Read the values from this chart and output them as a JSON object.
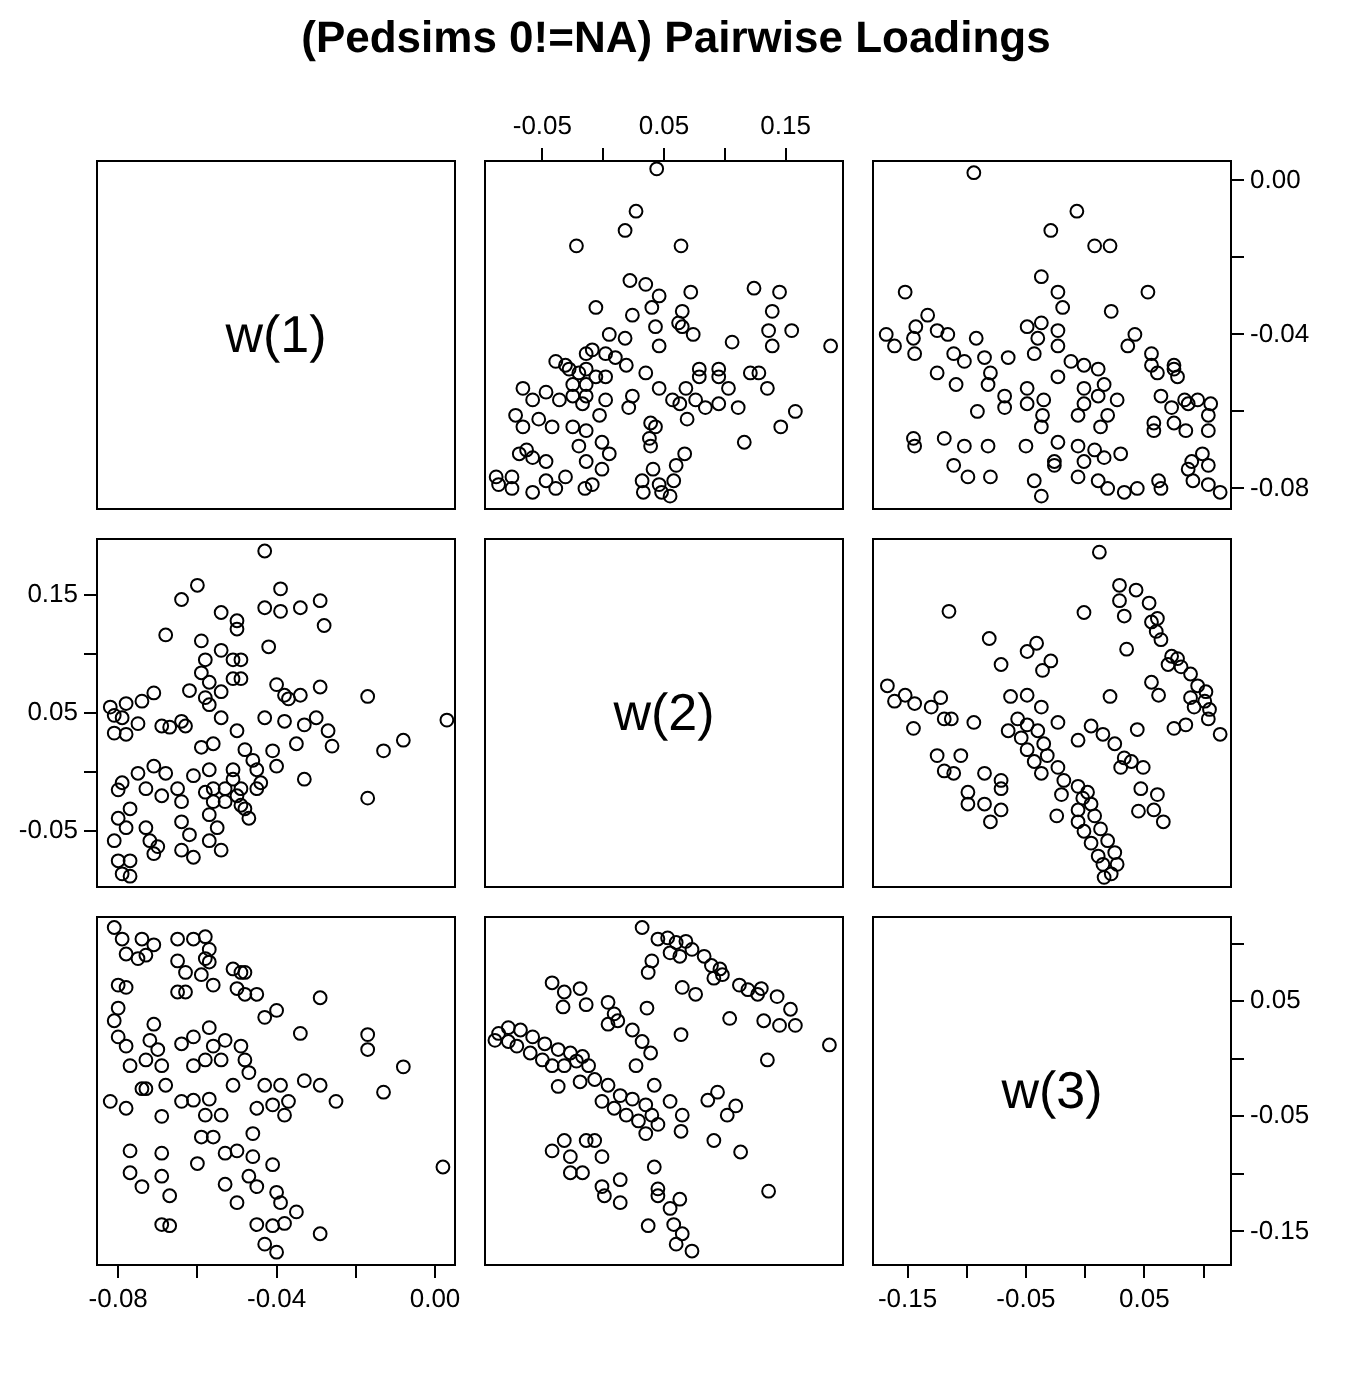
{
  "chart_data": [
    {
      "type": "other",
      "title": "(Pedsims 0!=NA) Pairwise Loadings",
      "annotations": [
        "w(1)"
      ]
    },
    {
      "type": "scatter",
      "color": "#000000",
      "marker": "circle",
      "xlim": [
        -0.098,
        0.198
      ],
      "ylim": [
        -0.0856,
        0.0053
      ],
      "xticks": [
        -0.05,
        {
          "value": 0,
          "label": null
        },
        0.05,
        {
          "value": 0.1,
          "label": null
        },
        0.15
      ],
      "tick_labels": "x",
      "x": [
        0.187,
        0.158,
        0.146,
        0.116,
        0.155,
        0.139,
        0.136,
        0.139,
        0.145,
        0.124,
        0.135,
        0.128,
        0.121,
        0.106,
        0.111,
        0.095,
        0.084,
        0.076,
        0.063,
        0.057,
        0.103,
        0.095,
        0.095,
        0.079,
        0.079,
        0.069,
        0.068,
        0.074,
        0.065,
        0.062,
        0.065,
        0.072,
        0.064,
        0.044,
        0.027,
        0.018,
        -0.022,
        -0.006,
        0.055,
        0.058,
        0.048,
        0.046,
        0.033,
        0.032,
        0.041,
        0.06,
        0.067,
        0.039,
        0.038,
        0.043,
        0.039,
        0.046,
        0.035,
        0.019,
        0.024,
        0.021,
        0.01,
        0.002,
        0.002,
        0.002,
        0.046,
        0.043,
        0.04,
        0.046,
        0.035,
        0.022,
        0.024,
        0.005,
        0.018,
        -0.001,
        0.005,
        -0.001,
        -0.014,
        -0.02,
        -0.014,
        -0.003,
        -0.025,
        -0.009,
        -0.015,
        -0.031,
        -0.039,
        -0.047,
        -0.058,
        -0.075,
        -0.086,
        -0.075,
        -0.088,
        -0.047,
        -0.058,
        -0.069,
        -0.063,
        -0.042,
        -0.053,
        -0.066,
        -0.072,
        -0.017,
        -0.025,
        -0.036,
        -0.047,
        -0.058,
        -0.066,
        -0.025,
        -0.014,
        -0.02,
        -0.028,
        -0.039,
        -0.031,
        -0.014,
        -0.014,
        -0.009,
        -0.014,
        -0.006
      ],
      "values": [
        -0.043,
        -0.06,
        -0.064,
        -0.068,
        -0.039,
        -0.043,
        -0.039,
        -0.034,
        -0.029,
        -0.028,
        -0.054,
        -0.05,
        -0.05,
        -0.042,
        -0.059,
        -0.058,
        -0.059,
        -0.057,
        -0.058,
        -0.057,
        -0.054,
        -0.051,
        -0.049,
        -0.051,
        -0.049,
        -0.062,
        -0.054,
        -0.04,
        -0.038,
        -0.037,
        -0.034,
        -0.029,
        -0.017,
        0.003,
        -0.008,
        -0.013,
        -0.017,
        -0.033,
        -0.082,
        -0.078,
        -0.081,
        -0.079,
        -0.081,
        -0.078,
        -0.075,
        -0.074,
        -0.071,
        -0.069,
        -0.067,
        -0.064,
        -0.063,
        -0.054,
        -0.05,
        -0.048,
        -0.056,
        -0.059,
        -0.046,
        -0.051,
        -0.057,
        -0.045,
        -0.043,
        -0.038,
        -0.033,
        -0.03,
        -0.027,
        -0.026,
        -0.035,
        -0.04,
        -0.041,
        -0.075,
        -0.071,
        -0.068,
        -0.073,
        -0.069,
        -0.065,
        -0.061,
        -0.064,
        -0.079,
        -0.08,
        -0.077,
        -0.08,
        -0.078,
        -0.081,
        -0.08,
        -0.079,
        -0.077,
        -0.077,
        -0.073,
        -0.072,
        -0.071,
        -0.07,
        -0.064,
        -0.062,
        -0.064,
        -0.061,
        -0.058,
        -0.056,
        -0.057,
        -0.055,
        -0.057,
        -0.054,
        -0.053,
        -0.056,
        -0.05,
        -0.049,
        -0.047,
        -0.048,
        -0.049,
        -0.045,
        -0.044,
        -0.053,
        -0.051
      ]
    },
    {
      "type": "scatter",
      "color": "#000000",
      "marker": "circle",
      "xlim": [
        -0.18,
        0.124
      ],
      "ylim": [
        -0.0856,
        0.0053
      ],
      "yticks": [
        {
          "value": 0,
          "label": "0.00"
        },
        {
          "value": -0.02,
          "label": null
        },
        -0.04,
        {
          "value": -0.06,
          "label": null
        },
        -0.08
      ],
      "tick_labels": "y",
      "x": [
        0.114,
        0.104,
        0.091,
        0.104,
        0.09,
        0.099,
        0.087,
        0.104,
        0.104,
        0.106,
        0.095,
        0.087,
        0.084,
        0.085,
        0.075,
        0.073,
        0.064,
        0.078,
        0.075,
        0.075,
        0.061,
        0.056,
        0.056,
        0.058,
        0.058,
        0.064,
        0.062,
        0.044,
        0.033,
        0.019,
        0.011,
        -0.006,
        0.03,
        0.016,
        0.008,
        -0.001,
        -0.006,
        0.053,
        0.036,
        0.042,
        0.022,
        0.021,
        0.008,
        -0.007,
        -0.029,
        -0.094,
        0.013,
        0.019,
        0.027,
        0.011,
        -0.001,
        -0.006,
        0.016,
        -0.001,
        0.011,
        -0.001,
        -0.012,
        -0.023,
        -0.037,
        -0.043,
        -0.026,
        -0.026,
        -0.023,
        -0.037,
        -0.036,
        -0.023,
        -0.023,
        -0.019,
        -0.023,
        -0.037,
        -0.037,
        -0.049,
        -0.043,
        -0.04,
        -0.035,
        -0.049,
        -0.068,
        -0.091,
        -0.068,
        -0.049,
        -0.05,
        -0.08,
        -0.099,
        -0.111,
        -0.082,
        -0.102,
        -0.119,
        -0.144,
        -0.145,
        -0.082,
        -0.08,
        -0.065,
        -0.085,
        -0.102,
        -0.111,
        -0.109,
        -0.125,
        -0.092,
        -0.116,
        -0.125,
        -0.144,
        -0.145,
        -0.143,
        -0.133,
        -0.161,
        -0.168,
        -0.152
      ],
      "values": [
        -0.081,
        -0.079,
        -0.078,
        -0.074,
        -0.073,
        -0.071,
        -0.075,
        -0.065,
        -0.061,
        -0.058,
        -0.057,
        -0.058,
        -0.057,
        -0.065,
        -0.063,
        -0.059,
        -0.056,
        -0.051,
        -0.049,
        -0.048,
        -0.05,
        -0.048,
        -0.045,
        -0.065,
        -0.063,
        -0.08,
        -0.078,
        -0.08,
        -0.081,
        -0.08,
        -0.078,
        -0.077,
        -0.071,
        -0.072,
        -0.07,
        -0.073,
        -0.069,
        -0.029,
        -0.043,
        -0.04,
        -0.034,
        -0.017,
        -0.017,
        -0.008,
        -0.013,
        0.002,
        -0.064,
        -0.061,
        -0.057,
        -0.056,
        -0.058,
        -0.061,
        -0.053,
        -0.054,
        -0.049,
        -0.048,
        -0.047,
        -0.051,
        -0.082,
        -0.078,
        -0.074,
        -0.073,
        -0.068,
        -0.064,
        -0.061,
        -0.043,
        -0.039,
        -0.033,
        -0.029,
        -0.025,
        -0.037,
        -0.038,
        -0.045,
        -0.041,
        -0.057,
        -0.058,
        -0.059,
        -0.06,
        -0.056,
        -0.054,
        -0.069,
        -0.077,
        -0.077,
        -0.074,
        -0.069,
        -0.069,
        -0.067,
        -0.069,
        -0.067,
        -0.053,
        -0.05,
        -0.046,
        -0.046,
        -0.047,
        -0.045,
        -0.053,
        -0.05,
        -0.041,
        -0.04,
        -0.039,
        -0.045,
        -0.041,
        -0.038,
        -0.035,
        -0.043,
        -0.04,
        -0.029
      ]
    },
    {
      "type": "scatter",
      "color": "#000000",
      "marker": "circle",
      "xlim": [
        -0.0856,
        0.0053
      ],
      "ylim": [
        -0.098,
        0.198
      ],
      "yticks": [
        -0.05,
        {
          "value": 0,
          "label": null
        },
        0.05,
        {
          "value": 0.1,
          "label": null
        },
        0.15
      ],
      "tick_labels": "y",
      "x": [
        -0.043,
        -0.06,
        -0.064,
        -0.068,
        -0.039,
        -0.043,
        -0.039,
        -0.034,
        -0.029,
        -0.028,
        -0.054,
        -0.05,
        -0.05,
        -0.042,
        -0.059,
        -0.058,
        -0.059,
        -0.057,
        -0.058,
        -0.057,
        -0.054,
        -0.051,
        -0.049,
        -0.051,
        -0.049,
        -0.062,
        -0.054,
        -0.04,
        -0.038,
        -0.037,
        -0.034,
        -0.029,
        -0.017,
        0.003,
        -0.008,
        -0.013,
        -0.017,
        -0.033,
        -0.082,
        -0.078,
        -0.081,
        -0.079,
        -0.081,
        -0.078,
        -0.075,
        -0.074,
        -0.071,
        -0.069,
        -0.067,
        -0.064,
        -0.063,
        -0.054,
        -0.05,
        -0.048,
        -0.056,
        -0.059,
        -0.046,
        -0.051,
        -0.057,
        -0.045,
        -0.043,
        -0.038,
        -0.033,
        -0.03,
        -0.027,
        -0.026,
        -0.035,
        -0.04,
        -0.041,
        -0.075,
        -0.071,
        -0.068,
        -0.073,
        -0.069,
        -0.065,
        -0.061,
        -0.064,
        -0.079,
        -0.08,
        -0.077,
        -0.08,
        -0.078,
        -0.081,
        -0.08,
        -0.079,
        -0.077,
        -0.077,
        -0.073,
        -0.072,
        -0.071,
        -0.07,
        -0.064,
        -0.062,
        -0.064,
        -0.061,
        -0.058,
        -0.056,
        -0.057,
        -0.055,
        -0.057,
        -0.054,
        -0.053,
        -0.056,
        -0.05,
        -0.049,
        -0.047,
        -0.048,
        -0.049,
        -0.045,
        -0.044,
        -0.053,
        -0.051
      ],
      "values": [
        0.187,
        0.158,
        0.146,
        0.116,
        0.155,
        0.139,
        0.136,
        0.139,
        0.145,
        0.124,
        0.135,
        0.128,
        0.121,
        0.106,
        0.111,
        0.095,
        0.084,
        0.076,
        0.063,
        0.057,
        0.103,
        0.095,
        0.095,
        0.079,
        0.079,
        0.069,
        0.068,
        0.074,
        0.065,
        0.062,
        0.065,
        0.072,
        0.064,
        0.044,
        0.027,
        0.018,
        -0.022,
        -0.006,
        0.055,
        0.058,
        0.048,
        0.046,
        0.033,
        0.032,
        0.041,
        0.06,
        0.067,
        0.039,
        0.038,
        0.043,
        0.039,
        0.046,
        0.035,
        0.019,
        0.024,
        0.021,
        0.01,
        0.002,
        0.002,
        0.002,
        0.046,
        0.043,
        0.04,
        0.046,
        0.035,
        0.022,
        0.024,
        0.005,
        0.018,
        -0.001,
        0.005,
        -0.001,
        -0.014,
        -0.02,
        -0.014,
        -0.003,
        -0.025,
        -0.009,
        -0.015,
        -0.031,
        -0.039,
        -0.047,
        -0.058,
        -0.075,
        -0.086,
        -0.075,
        -0.088,
        -0.047,
        -0.058,
        -0.069,
        -0.063,
        -0.042,
        -0.053,
        -0.066,
        -0.072,
        -0.017,
        -0.025,
        -0.036,
        -0.047,
        -0.058,
        -0.066,
        -0.025,
        -0.014,
        -0.02,
        -0.028,
        -0.039,
        -0.031,
        -0.014,
        -0.014,
        -0.009,
        -0.014,
        -0.006
      ]
    },
    {
      "type": "other",
      "annotations": [
        "w(2)"
      ]
    },
    {
      "type": "scatter",
      "color": "#000000",
      "marker": "circle",
      "xlim": [
        -0.18,
        0.124
      ],
      "ylim": [
        -0.098,
        0.198
      ],
      "tick_labels": false,
      "x": [
        0.114,
        0.104,
        0.105,
        0.101,
        0.102,
        0.095,
        0.092,
        0.089,
        0.085,
        0.075,
        0.089,
        0.081,
        0.078,
        0.073,
        0.07,
        0.064,
        0.06,
        0.056,
        0.061,
        0.054,
        0.043,
        0.029,
        0.029,
        0.033,
        -0.001,
        0.012,
        0.035,
        0.062,
        0.056,
        0.021,
        0.044,
        0.022,
        0.027,
        0.025,
        0.019,
        0.013,
        0.008,
        0.005,
        0.002,
        0.011,
        0.005,
        -0.001,
        -0.006,
        -0.006,
        -0.002,
        -0.006,
        0.015,
        0.016,
        0.066,
        0.058,
        0.061,
        0.047,
        0.045,
        0.049,
        0.039,
        0.033,
        0.03,
        0.025,
        0.015,
        0.005,
        -0.006,
        -0.024,
        -0.02,
        -0.018,
        -0.023,
        -0.032,
        -0.035,
        -0.04,
        -0.049,
        -0.057,
        -0.037,
        -0.043,
        -0.049,
        -0.054,
        -0.023,
        -0.037,
        -0.049,
        -0.065,
        -0.063,
        -0.036,
        -0.029,
        -0.049,
        -0.041,
        -0.071,
        -0.081,
        -0.115,
        -0.08,
        -0.071,
        -0.085,
        -0.071,
        -0.071,
        -0.085,
        -0.099,
        -0.099,
        -0.111,
        -0.105,
        -0.119,
        -0.125,
        -0.094,
        -0.113,
        -0.119,
        -0.122,
        -0.13,
        -0.144,
        -0.145,
        -0.152,
        -0.161,
        -0.167
      ],
      "values": [
        0.032,
        0.045,
        0.053,
        0.06,
        0.068,
        0.073,
        0.055,
        0.063,
        0.04,
        0.037,
        0.083,
        0.089,
        0.096,
        0.098,
        0.091,
        0.112,
        0.119,
        0.127,
        0.13,
        0.143,
        0.154,
        0.158,
        0.145,
        0.132,
        0.135,
        0.186,
        0.104,
        0.065,
        0.076,
        0.064,
        0.036,
        -0.086,
        -0.078,
        -0.068,
        -0.058,
        -0.048,
        -0.037,
        -0.027,
        -0.017,
        -0.071,
        -0.06,
        -0.05,
        -0.042,
        -0.032,
        -0.022,
        -0.012,
        -0.078,
        -0.089,
        -0.042,
        -0.032,
        -0.019,
        -0.014,
        -0.033,
        0.004,
        0.009,
        0.012,
        0.004,
        0.024,
        0.032,
        0.039,
        0.027,
        -0.037,
        -0.019,
        -0.007,
        0.004,
        0.014,
        0.024,
        0.035,
        0.04,
        0.045,
        -0.001,
        0.009,
        0.019,
        0.029,
        0.042,
        0.055,
        0.065,
        0.035,
        0.064,
        0.086,
        0.094,
        0.102,
        0.109,
        0.091,
        0.113,
        0.136,
        -0.042,
        -0.032,
        -0.027,
        -0.014,
        -0.007,
        -0.001,
        -0.027,
        -0.017,
        -0.001,
        0.014,
        0.001,
        0.014,
        0.042,
        0.045,
        0.045,
        0.063,
        0.055,
        0.058,
        0.037,
        0.065,
        0.06,
        0.073
      ]
    },
    {
      "type": "scatter",
      "color": "#000000",
      "marker": "circle",
      "xlim": [
        -0.0856,
        0.0053
      ],
      "ylim": [
        -0.18,
        0.124
      ],
      "xticks": [
        -0.08,
        {
          "value": -0.06,
          "label": null
        },
        -0.04,
        {
          "value": -0.02,
          "label": null
        },
        {
          "value": 0,
          "label": "0.00"
        }
      ],
      "tick_labels": "x",
      "x": [
        -0.081,
        -0.079,
        -0.078,
        -0.074,
        -0.073,
        -0.071,
        -0.075,
        -0.065,
        -0.061,
        -0.058,
        -0.057,
        -0.058,
        -0.057,
        -0.065,
        -0.063,
        -0.059,
        -0.056,
        -0.051,
        -0.049,
        -0.048,
        -0.05,
        -0.048,
        -0.045,
        -0.065,
        -0.063,
        -0.08,
        -0.078,
        -0.08,
        -0.081,
        -0.08,
        -0.078,
        -0.077,
        -0.071,
        -0.072,
        -0.07,
        -0.073,
        -0.069,
        -0.029,
        -0.043,
        -0.04,
        -0.034,
        -0.017,
        -0.017,
        -0.008,
        -0.013,
        0.002,
        -0.064,
        -0.061,
        -0.057,
        -0.056,
        -0.058,
        -0.061,
        -0.053,
        -0.054,
        -0.049,
        -0.048,
        -0.047,
        -0.051,
        -0.082,
        -0.078,
        -0.074,
        -0.073,
        -0.068,
        -0.064,
        -0.061,
        -0.043,
        -0.039,
        -0.033,
        -0.029,
        -0.025,
        -0.037,
        -0.038,
        -0.045,
        -0.041,
        -0.057,
        -0.058,
        -0.059,
        -0.06,
        -0.056,
        -0.054,
        -0.069,
        -0.077,
        -0.077,
        -0.074,
        -0.069,
        -0.069,
        -0.067,
        -0.069,
        -0.067,
        -0.053,
        -0.05,
        -0.046,
        -0.046,
        -0.047,
        -0.045,
        -0.053,
        -0.05,
        -0.041,
        -0.04,
        -0.039,
        -0.045,
        -0.041,
        -0.038,
        -0.035,
        -0.043,
        -0.04,
        -0.029
      ],
      "values": [
        0.114,
        0.104,
        0.091,
        0.104,
        0.09,
        0.099,
        0.087,
        0.104,
        0.104,
        0.106,
        0.095,
        0.087,
        0.084,
        0.085,
        0.075,
        0.073,
        0.064,
        0.078,
        0.075,
        0.075,
        0.061,
        0.056,
        0.056,
        0.058,
        0.058,
        0.064,
        0.062,
        0.044,
        0.033,
        0.019,
        0.011,
        -0.006,
        0.03,
        0.016,
        0.008,
        -0.001,
        -0.006,
        0.053,
        0.036,
        0.042,
        0.022,
        0.021,
        0.008,
        -0.007,
        -0.029,
        -0.094,
        0.013,
        0.019,
        0.027,
        0.011,
        -0.001,
        -0.006,
        0.016,
        -0.001,
        0.011,
        -0.001,
        -0.012,
        -0.023,
        -0.037,
        -0.043,
        -0.026,
        -0.026,
        -0.023,
        -0.037,
        -0.036,
        -0.023,
        -0.023,
        -0.019,
        -0.023,
        -0.037,
        -0.037,
        -0.049,
        -0.043,
        -0.04,
        -0.035,
        -0.049,
        -0.068,
        -0.091,
        -0.068,
        -0.049,
        -0.05,
        -0.08,
        -0.099,
        -0.111,
        -0.082,
        -0.102,
        -0.119,
        -0.144,
        -0.145,
        -0.082,
        -0.08,
        -0.065,
        -0.085,
        -0.102,
        -0.111,
        -0.109,
        -0.125,
        -0.092,
        -0.116,
        -0.125,
        -0.144,
        -0.145,
        -0.143,
        -0.133,
        -0.161,
        -0.168,
        -0.152
      ]
    },
    {
      "type": "scatter",
      "color": "#000000",
      "marker": "circle",
      "xlim": [
        -0.098,
        0.198
      ],
      "ylim": [
        -0.18,
        0.124
      ],
      "tick_labels": false,
      "x": [
        0.032,
        0.045,
        0.053,
        0.06,
        0.068,
        0.073,
        0.055,
        0.063,
        0.04,
        0.037,
        0.083,
        0.089,
        0.096,
        0.098,
        0.091,
        0.112,
        0.119,
        0.127,
        0.13,
        0.143,
        0.154,
        0.158,
        0.145,
        0.132,
        0.135,
        0.186,
        0.104,
        0.065,
        0.076,
        0.064,
        0.036,
        -0.086,
        -0.078,
        -0.068,
        -0.058,
        -0.048,
        -0.037,
        -0.027,
        -0.017,
        -0.071,
        -0.06,
        -0.05,
        -0.042,
        -0.032,
        -0.022,
        -0.012,
        -0.078,
        -0.089,
        -0.042,
        -0.032,
        -0.019,
        -0.014,
        -0.033,
        0.004,
        0.009,
        0.012,
        0.004,
        0.024,
        0.032,
        0.039,
        0.027,
        -0.037,
        -0.019,
        -0.007,
        0.004,
        0.014,
        0.024,
        0.035,
        0.04,
        0.045,
        -0.001,
        0.009,
        0.019,
        0.029,
        0.042,
        0.055,
        0.065,
        0.035,
        0.064,
        0.086,
        0.094,
        0.102,
        0.109,
        0.091,
        0.113,
        0.136,
        -0.042,
        -0.032,
        -0.027,
        -0.014,
        -0.007,
        -0.001,
        -0.027,
        -0.017,
        -0.001,
        0.014,
        0.001,
        0.014,
        0.042,
        0.045,
        0.045,
        0.063,
        0.055,
        0.058,
        0.037,
        0.065,
        0.06,
        0.073
      ],
      "values": [
        0.114,
        0.104,
        0.105,
        0.101,
        0.102,
        0.095,
        0.092,
        0.089,
        0.085,
        0.075,
        0.089,
        0.081,
        0.078,
        0.073,
        0.07,
        0.064,
        0.06,
        0.056,
        0.061,
        0.054,
        0.043,
        0.029,
        0.029,
        0.033,
        -0.001,
        0.012,
        0.035,
        0.062,
        0.056,
        0.021,
        0.044,
        0.022,
        0.027,
        0.025,
        0.019,
        0.013,
        0.008,
        0.005,
        0.002,
        0.011,
        0.005,
        -0.001,
        -0.006,
        -0.006,
        -0.002,
        -0.006,
        0.015,
        0.016,
        0.066,
        0.058,
        0.061,
        0.047,
        0.045,
        0.049,
        0.039,
        0.033,
        0.03,
        0.025,
        0.015,
        0.005,
        -0.006,
        -0.024,
        -0.02,
        -0.018,
        -0.023,
        -0.032,
        -0.035,
        -0.04,
        -0.049,
        -0.057,
        -0.037,
        -0.043,
        -0.049,
        -0.054,
        -0.023,
        -0.037,
        -0.049,
        -0.065,
        -0.063,
        -0.036,
        -0.029,
        -0.049,
        -0.041,
        -0.071,
        -0.081,
        -0.115,
        -0.08,
        -0.071,
        -0.085,
        -0.071,
        -0.071,
        -0.085,
        -0.099,
        -0.099,
        -0.111,
        -0.105,
        -0.119,
        -0.125,
        -0.094,
        -0.113,
        -0.119,
        -0.122,
        -0.13,
        -0.144,
        -0.145,
        -0.152,
        -0.161,
        -0.167
      ]
    },
    {
      "type": "scatter",
      "annotations": [
        "w(3)"
      ],
      "xlim": [
        -0.18,
        0.124
      ],
      "ylim": [
        -0.18,
        0.124
      ],
      "xticks": [
        -0.15,
        {
          "value": -0.1,
          "label": null
        },
        -0.05,
        {
          "value": 0,
          "label": null
        },
        0.05,
        {
          "value": 0.1,
          "label": null
        }
      ],
      "yticks": [
        -0.15,
        {
          "value": -0.1,
          "label": null
        },
        -0.05,
        {
          "value": 0,
          "label": null
        },
        0.05,
        {
          "value": 0.1,
          "label": null
        }
      ]
    }
  ]
}
